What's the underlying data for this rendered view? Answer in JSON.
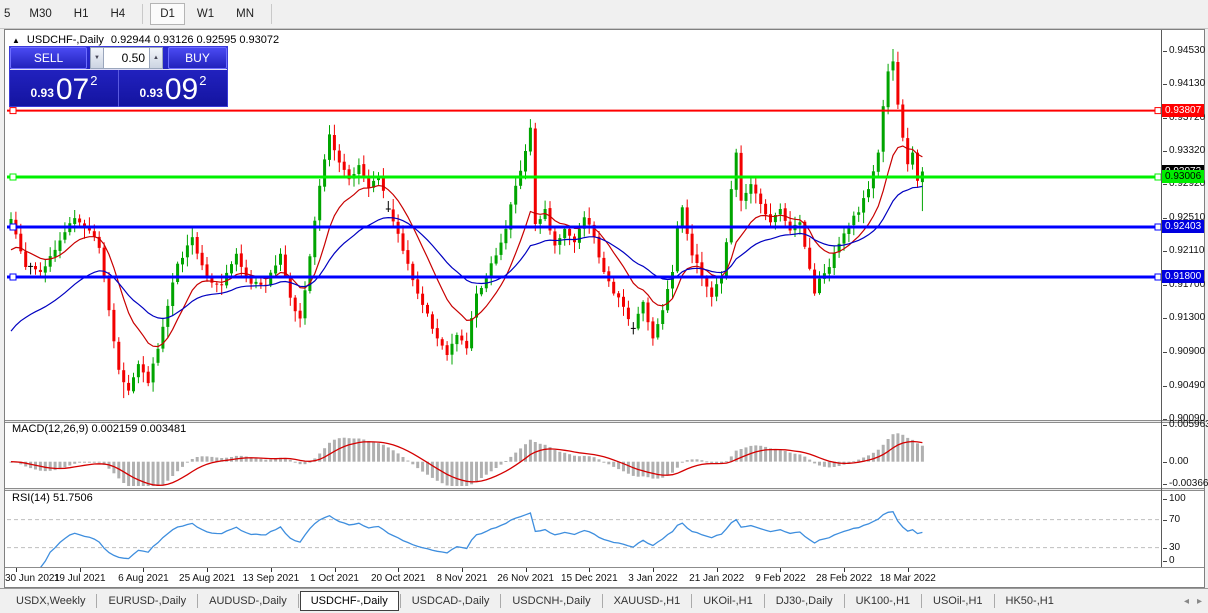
{
  "toolbar": {
    "items": [
      "5",
      "M30",
      "H1",
      "H4",
      "D1",
      "W1",
      "MN"
    ],
    "active": "D1",
    "separators_after": [
      3,
      6
    ]
  },
  "chart_header": {
    "collapse_icon": "▲",
    "title": "USDCHF-,Daily",
    "ohlc": "0.92944 0.93126 0.92595 0.93072"
  },
  "trade_panel": {
    "sell_label": "SELL",
    "buy_label": "BUY",
    "volume": "0.50",
    "spinner_down": "▼",
    "spinner_up": "▲",
    "sell_price_prefix": "0.93",
    "sell_price_big": "07",
    "sell_price_sup": "2",
    "buy_price_prefix": "0.93",
    "buy_price_big": "09",
    "buy_price_sup": "2"
  },
  "indicators": {
    "macd": {
      "header": "MACD(12,26,9) 0.002159 0.003481",
      "main": "0.002159",
      "signal": "0.003481"
    },
    "rsi": {
      "header": "RSI(14) 51.7506",
      "value": "51.7506"
    }
  },
  "price_axis": {
    "ticks": [
      "0.94530",
      "0.94130",
      "0.93720",
      "0.93320",
      "0.92920",
      "0.92510",
      "0.92110",
      "0.91700",
      "0.91300",
      "0.90900",
      "0.90490",
      "0.90090"
    ],
    "current": {
      "value": "0.93072",
      "bg": "#000000",
      "fg": "#ffffff"
    },
    "levels": [
      {
        "value": "0.93807",
        "bg": "#ff0000",
        "fg": "#ffffff"
      },
      {
        "value": "0.93006",
        "bg": "#00ee00",
        "fg": "#000000"
      },
      {
        "value": "0.92403",
        "bg": "#0000e0",
        "fg": "#ffffff"
      },
      {
        "value": "0.91800",
        "bg": "#0000e0",
        "fg": "#ffffff"
      }
    ]
  },
  "macd_axis": [
    "0.005963",
    "0.00",
    "-0.00366"
  ],
  "rsi_axis": [
    "100",
    "70",
    "30",
    "0"
  ],
  "tabs": {
    "items": [
      "USDX,Weekly",
      "EURUSD-,Daily",
      "AUDUSD-,Daily",
      "USDCHF-,Daily",
      "USDCAD-,Daily",
      "USDCNH-,Daily",
      "XAUUSD-,H1",
      "UKOil-,H1",
      "DJ30-,Daily",
      "UK100-,H1",
      "USOil-,H1",
      "HK50-,H1"
    ],
    "active_index": 3,
    "nav": [
      "◂",
      "▸"
    ]
  },
  "chart_data": {
    "type": "candlestick",
    "symbol": "USDCHF",
    "timeframe": "Daily",
    "seed": 42,
    "ylim": {
      "top": 0.947668,
      "bottom": 0.900754
    },
    "dates": [
      "30 Jun 2021",
      "19 Jul 2021",
      "6 Aug 2021",
      "25 Aug 2021",
      "13 Sep 2021",
      "1 Oct 2021",
      "20 Oct 2021",
      "8 Nov 2021",
      "26 Nov 2021",
      "15 Dec 2021",
      "3 Jan 2022",
      "21 Jan 2022",
      "9 Feb 2022",
      "28 Feb 2022",
      "18 Mar 2022"
    ],
    "levels": [
      {
        "price": 0.93807,
        "color": "#ff0000",
        "width": 2
      },
      {
        "price": 0.93006,
        "color": "#00f000",
        "width": 3
      },
      {
        "price": 0.92403,
        "color": "#0000ff",
        "width": 3
      },
      {
        "price": 0.918,
        "color": "#0000ff",
        "width": 3
      }
    ],
    "candles": {
      "anchors": [
        [
          0,
          0.925
        ],
        [
          3,
          0.9192
        ],
        [
          6,
          0.9186
        ],
        [
          10,
          0.9224
        ],
        [
          13,
          0.9251
        ],
        [
          16,
          0.9236
        ],
        [
          18,
          0.9215
        ],
        [
          20,
          0.914
        ],
        [
          22,
          0.9068
        ],
        [
          24,
          0.9043
        ],
        [
          26,
          0.9075
        ],
        [
          28,
          0.9052
        ],
        [
          31,
          0.912
        ],
        [
          34,
          0.9196
        ],
        [
          37,
          0.9228
        ],
        [
          40,
          0.918
        ],
        [
          43,
          0.917
        ],
        [
          46,
          0.9208
        ],
        [
          49,
          0.9172
        ],
        [
          52,
          0.917
        ],
        [
          55,
          0.9208
        ],
        [
          57,
          0.9155
        ],
        [
          59,
          0.913
        ],
        [
          61,
          0.9205
        ],
        [
          63,
          0.929
        ],
        [
          65,
          0.9352
        ],
        [
          67,
          0.9318
        ],
        [
          69,
          0.9298
        ],
        [
          71,
          0.9315
        ],
        [
          73,
          0.9288
        ],
        [
          75,
          0.93
        ],
        [
          77,
          0.9262
        ],
        [
          79,
          0.9232
        ],
        [
          81,
          0.9196
        ],
        [
          83,
          0.916
        ],
        [
          85,
          0.9136
        ],
        [
          87,
          0.9106
        ],
        [
          89,
          0.9086
        ],
        [
          91,
          0.911
        ],
        [
          93,
          0.9094
        ],
        [
          95,
          0.916
        ],
        [
          97,
          0.918
        ],
        [
          99,
          0.9206
        ],
        [
          101,
          0.9238
        ],
        [
          103,
          0.929
        ],
        [
          105,
          0.9332
        ],
        [
          106,
          0.936
        ],
        [
          107,
          0.9244
        ],
        [
          109,
          0.9262
        ],
        [
          111,
          0.9218
        ],
        [
          113,
          0.9238
        ],
        [
          115,
          0.9222
        ],
        [
          117,
          0.9252
        ],
        [
          119,
          0.9228
        ],
        [
          121,
          0.9186
        ],
        [
          123,
          0.916
        ],
        [
          125,
          0.9144
        ],
        [
          127,
          0.9118
        ],
        [
          129,
          0.915
        ],
        [
          131,
          0.9106
        ],
        [
          133,
          0.914
        ],
        [
          135,
          0.9186
        ],
        [
          136,
          0.924
        ],
        [
          137,
          0.9264
        ],
        [
          139,
          0.9206
        ],
        [
          141,
          0.918
        ],
        [
          143,
          0.9156
        ],
        [
          145,
          0.918
        ],
        [
          146,
          0.9222
        ],
        [
          147,
          0.9286
        ],
        [
          148,
          0.933
        ],
        [
          149,
          0.9272
        ],
        [
          151,
          0.9292
        ],
        [
          153,
          0.9268
        ],
        [
          155,
          0.9246
        ],
        [
          157,
          0.9262
        ],
        [
          159,
          0.9236
        ],
        [
          161,
          0.9246
        ],
        [
          163,
          0.919
        ],
        [
          164,
          0.916
        ],
        [
          165,
          0.9178
        ],
        [
          167,
          0.9192
        ],
        [
          169,
          0.922
        ],
        [
          171,
          0.9242
        ],
        [
          173,
          0.9258
        ],
        [
          175,
          0.9286
        ],
        [
          177,
          0.933
        ],
        [
          178,
          0.9386
        ],
        [
          179,
          0.9428
        ],
        [
          180,
          0.944
        ],
        [
          181,
          0.9388
        ],
        [
          182,
          0.9348
        ],
        [
          183,
          0.9316
        ],
        [
          184,
          0.933
        ],
        [
          185,
          0.9296
        ],
        [
          186,
          0.93072
        ]
      ],
      "doji_indices": [
        77,
        127
      ],
      "wick_overrides": [
        {
          "i": 23,
          "low": 0.9034
        },
        {
          "i": 89,
          "low": 0.9079
        },
        {
          "i": 107,
          "high": 0.9366
        },
        {
          "i": 180,
          "high": 0.9455
        }
      ],
      "last_candle": {
        "open": 0.92944,
        "high": 0.93126,
        "low": 0.92595,
        "close": 0.93072
      }
    },
    "moving_averages": [
      {
        "name": "ma-fast",
        "period": 12,
        "seed_value": 0.9206,
        "color": "#c80000"
      },
      {
        "name": "ma-slow",
        "period": 32,
        "seed_value": 0.9106,
        "color": "#0000c0"
      }
    ],
    "macd": {
      "fast": 12,
      "slow": 26,
      "signal": 9,
      "ylim": {
        "top": 0.0062,
        "bottom": -0.004
      },
      "hist_color": "#b0b0b0",
      "signal_color": "#d40000"
    },
    "rsi": {
      "period": 14,
      "levels": [
        70,
        30
      ],
      "ylim": {
        "top": 100,
        "bottom": 0
      },
      "color": "#3e8ede",
      "level_color": "#bfbfbf"
    },
    "colors": {
      "up": "#00a400",
      "down": "#f20000",
      "doji": "#000000"
    }
  }
}
